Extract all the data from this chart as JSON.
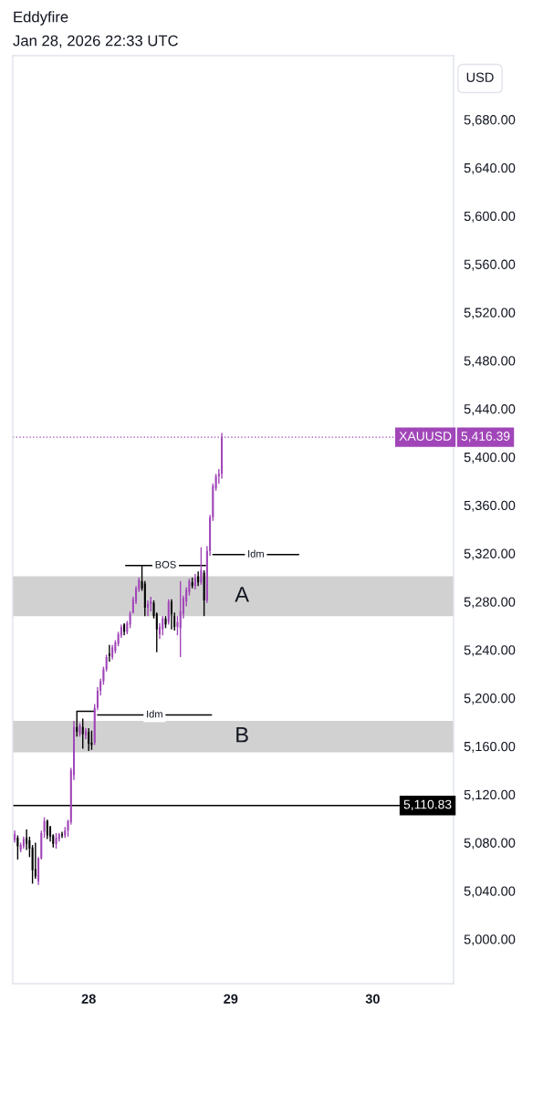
{
  "chart_data": {
    "type": "candlestick",
    "title": "Eddyfire",
    "subtitle": "Jan 28, 2026 22:33 UTC",
    "ylabel": "USD",
    "xlim": [
      "2026-01-27T11:10",
      "2026-01-30T13:40"
    ],
    "xticks": [
      {
        "value": "2026-01-28",
        "label": "28"
      },
      {
        "value": "2026-01-29",
        "label": "29"
      },
      {
        "value": "2026-01-30",
        "label": "30"
      }
    ],
    "ylim": [
      4963,
      5733
    ],
    "yticks": [
      {
        "value": 5000,
        "label": "5,000.00"
      },
      {
        "value": 5040,
        "label": "5,040.00"
      },
      {
        "value": 5080,
        "label": "5,080.00"
      },
      {
        "value": 5120,
        "label": "5,120.00"
      },
      {
        "value": 5160,
        "label": "5,160.00"
      },
      {
        "value": 5200,
        "label": "5,200.00"
      },
      {
        "value": 5240,
        "label": "5,240.00"
      },
      {
        "value": 5280,
        "label": "5,280.00"
      },
      {
        "value": 5320,
        "label": "5,320.00"
      },
      {
        "value": 5360,
        "label": "5,360.00"
      },
      {
        "value": 5400,
        "label": "5,400.00"
      },
      {
        "value": 5440,
        "label": "5,440.00"
      },
      {
        "value": 5480,
        "label": "5,480.00"
      },
      {
        "value": 5520,
        "label": "5,520.00"
      },
      {
        "value": 5560,
        "label": "5,560.00"
      },
      {
        "value": 5600,
        "label": "5,600.00"
      },
      {
        "value": 5640,
        "label": "5,640.00"
      },
      {
        "value": 5680,
        "label": "5,680.00"
      }
    ],
    "bands": [
      {
        "axis": "y",
        "from": 5155,
        "to": 5181,
        "label": "B",
        "color": "#d1d1d1"
      },
      {
        "axis": "y",
        "from": 5268,
        "to": 5301,
        "label": "A",
        "color": "#d1d1d1"
      }
    ],
    "series": [
      {
        "type": "line",
        "x": [
          "2026-01-27T22:00",
          "2026-01-28T01:00"
        ],
        "values": [
          5189,
          5189
        ],
        "color": "#000000"
      },
      {
        "type": "line",
        "name": "Idm",
        "x": [
          "2026-01-28T01:30",
          "2026-01-28T20:45"
        ],
        "values": [
          5186,
          5186
        ],
        "color": "#000000"
      },
      {
        "type": "line",
        "name": "BOS",
        "x": [
          "2026-01-28T06:15",
          "2026-01-28T19:45"
        ],
        "values": [
          5310,
          5310
        ],
        "color": "#000000"
      },
      {
        "type": "line",
        "name": "Idm",
        "x": [
          "2026-01-28T21:00",
          "2026-01-29T11:30"
        ],
        "values": [
          5319,
          5319
        ],
        "color": "#000000"
      },
      {
        "name": "XAUUSD",
        "x": [
          "2026-01-27T11:30",
          "2026-01-27T12:00",
          "2026-01-27T12:30",
          "2026-01-27T13:00",
          "2026-01-27T13:30",
          "2026-01-27T14:00",
          "2026-01-27T14:30",
          "2026-01-27T15:00",
          "2026-01-27T15:30",
          "2026-01-27T16:00",
          "2026-01-27T16:30",
          "2026-01-27T17:00",
          "2026-01-27T17:30",
          "2026-01-27T18:00",
          "2026-01-27T18:30",
          "2026-01-27T19:00",
          "2026-01-27T19:30",
          "2026-01-27T20:00",
          "2026-01-27T20:30",
          "2026-01-27T21:00",
          "2026-01-27T21:30",
          "2026-01-27T22:00",
          "2026-01-27T22:30",
          "2026-01-27T23:00",
          "2026-01-27T23:30",
          "2026-01-28T00:00",
          "2026-01-28T00:30",
          "2026-01-28T01:00",
          "2026-01-28T01:30",
          "2026-01-28T02:00",
          "2026-01-28T02:30",
          "2026-01-28T03:00",
          "2026-01-28T03:30",
          "2026-01-28T04:00",
          "2026-01-28T04:30",
          "2026-01-28T05:00",
          "2026-01-28T05:30",
          "2026-01-28T06:00",
          "2026-01-28T06:30",
          "2026-01-28T07:00",
          "2026-01-28T07:30",
          "2026-01-28T08:00",
          "2026-01-28T08:30",
          "2026-01-28T09:00",
          "2026-01-28T09:30",
          "2026-01-28T10:00",
          "2026-01-28T10:30",
          "2026-01-28T11:00",
          "2026-01-28T11:30",
          "2026-01-28T12:00",
          "2026-01-28T12:30",
          "2026-01-28T13:00",
          "2026-01-28T13:30",
          "2026-01-28T14:00",
          "2026-01-28T14:30",
          "2026-01-28T15:00",
          "2026-01-28T15:30",
          "2026-01-28T16:00",
          "2026-01-28T16:30",
          "2026-01-28T17:00",
          "2026-01-28T17:30",
          "2026-01-28T18:00",
          "2026-01-28T18:30",
          "2026-01-28T19:00",
          "2026-01-28T19:30",
          "2026-01-28T20:00",
          "2026-01-28T20:30",
          "2026-01-28T21:00",
          "2026-01-28T21:30",
          "2026-01-28T22:00",
          "2026-01-28T22:30"
        ],
        "ohlc": [
          [
            5082,
            5090,
            5080,
            5087
          ],
          [
            5084,
            5086,
            5066,
            5077
          ],
          [
            5074,
            5080,
            5072,
            5078
          ],
          [
            5077,
            5085,
            5075,
            5083
          ],
          [
            5084,
            5091,
            5074,
            5079
          ],
          [
            5082,
            5085,
            5068,
            5075
          ],
          [
            5076,
            5078,
            5046,
            5057
          ],
          [
            5058,
            5080,
            5050,
            5052
          ],
          [
            5048,
            5068,
            5045,
            5067
          ],
          [
            5067,
            5090,
            5066,
            5088
          ],
          [
            5089,
            5101,
            5084,
            5098
          ],
          [
            5098,
            5099,
            5083,
            5086
          ],
          [
            5093,
            5094,
            5081,
            5085
          ],
          [
            5086,
            5087,
            5076,
            5079
          ],
          [
            5079,
            5088,
            5075,
            5084
          ],
          [
            5083,
            5088,
            5081,
            5087
          ],
          [
            5087,
            5089,
            5084,
            5086
          ],
          [
            5086,
            5093,
            5084,
            5090
          ],
          [
            5090,
            5099,
            5085,
            5098
          ],
          [
            5097,
            5142,
            5095,
            5140
          ],
          [
            5136,
            5181,
            5132,
            5176
          ],
          [
            5176,
            5189,
            5168,
            5172
          ],
          [
            5170,
            5179,
            5168,
            5177
          ],
          [
            5176,
            5183,
            5158,
            5170
          ],
          [
            5169,
            5175,
            5166,
            5173
          ],
          [
            5172,
            5175,
            5156,
            5162
          ],
          [
            5163,
            5173,
            5157,
            5161
          ],
          [
            5163,
            5195,
            5161,
            5192
          ],
          [
            5192,
            5209,
            5190,
            5206
          ],
          [
            5206,
            5216,
            5202,
            5214
          ],
          [
            5214,
            5226,
            5211,
            5224
          ],
          [
            5224,
            5236,
            5222,
            5234
          ],
          [
            5237,
            5244,
            5230,
            5235
          ],
          [
            5234,
            5244,
            5232,
            5242
          ],
          [
            5239,
            5248,
            5237,
            5246
          ],
          [
            5245,
            5255,
            5243,
            5253
          ],
          [
            5252,
            5261,
            5250,
            5259
          ],
          [
            5261,
            5262,
            5252,
            5255
          ],
          [
            5255,
            5264,
            5253,
            5262
          ],
          [
            5261,
            5272,
            5258,
            5270
          ],
          [
            5271,
            5284,
            5270,
            5282
          ],
          [
            5280,
            5293,
            5278,
            5291
          ],
          [
            5290,
            5300,
            5288,
            5298
          ],
          [
            5297,
            5310,
            5289,
            5291
          ],
          [
            5295,
            5297,
            5268,
            5275
          ],
          [
            5275,
            5281,
            5268,
            5278
          ],
          [
            5278,
            5284,
            5272,
            5280
          ],
          [
            5279,
            5281,
            5266,
            5268
          ],
          [
            5270,
            5271,
            5238,
            5257
          ],
          [
            5253,
            5262,
            5249,
            5259
          ],
          [
            5257,
            5268,
            5252,
            5266
          ],
          [
            5266,
            5268,
            5258,
            5261
          ],
          [
            5263,
            5282,
            5261,
            5280
          ],
          [
            5280,
            5282,
            5257,
            5270
          ],
          [
            5268,
            5271,
            5256,
            5259
          ],
          [
            5259,
            5268,
            5252,
            5263
          ],
          [
            5258,
            5297,
            5234,
            5272
          ],
          [
            5270,
            5285,
            5266,
            5283
          ],
          [
            5280,
            5292,
            5276,
            5290
          ],
          [
            5288,
            5299,
            5285,
            5297
          ],
          [
            5296,
            5300,
            5291,
            5293
          ],
          [
            5293,
            5303,
            5290,
            5300
          ],
          [
            5301,
            5305,
            5293,
            5296
          ],
          [
            5296,
            5325,
            5294,
            5306
          ],
          [
            5304,
            5306,
            5268,
            5281
          ],
          [
            5281,
            5326,
            5279,
            5322
          ],
          [
            5322,
            5352,
            5318,
            5350
          ],
          [
            5350,
            5378,
            5347,
            5376
          ],
          [
            5374,
            5386,
            5372,
            5384
          ],
          [
            5384,
            5390,
            5378,
            5386
          ],
          [
            5386,
            5420,
            5382,
            5416.39
          ]
        ],
        "colors": [
          "#a146b8",
          "#000000",
          "#a146b8",
          "#a146b8",
          "#000000",
          "#000000",
          "#000000",
          "#000000",
          "#a146b8",
          "#a146b8",
          "#a146b8",
          "#000000",
          "#000000",
          "#000000",
          "#a146b8",
          "#a146b8",
          "#000000",
          "#a146b8",
          "#a146b8",
          "#a146b8",
          "#a146b8",
          "#000000",
          "#a146b8",
          "#000000",
          "#a146b8",
          "#000000",
          "#000000",
          "#a146b8",
          "#a146b8",
          "#a146b8",
          "#a146b8",
          "#a146b8",
          "#000000",
          "#a146b8",
          "#a146b8",
          "#a146b8",
          "#a146b8",
          "#000000",
          "#a146b8",
          "#a146b8",
          "#a146b8",
          "#a146b8",
          "#a146b8",
          "#000000",
          "#000000",
          "#a146b8",
          "#a146b8",
          "#000000",
          "#000000",
          "#a146b8",
          "#a146b8",
          "#000000",
          "#a146b8",
          "#000000",
          "#000000",
          "#a146b8",
          "#a146b8",
          "#a146b8",
          "#a146b8",
          "#a146b8",
          "#000000",
          "#a146b8",
          "#000000",
          "#a146b8",
          "#000000",
          "#a146b8",
          "#a146b8",
          "#a146b8",
          "#a146b8",
          "#a146b8",
          "#a146b8"
        ]
      }
    ],
    "ref_lines": [
      {
        "axis": "y",
        "value": 5416.39,
        "label": "5,416.39",
        "color": "#a146b8",
        "line_style": "dotted"
      },
      {
        "axis": "y",
        "value": 5110.83,
        "label": "5,110.83",
        "color": "#000000",
        "line_style": "solid"
      }
    ]
  }
}
